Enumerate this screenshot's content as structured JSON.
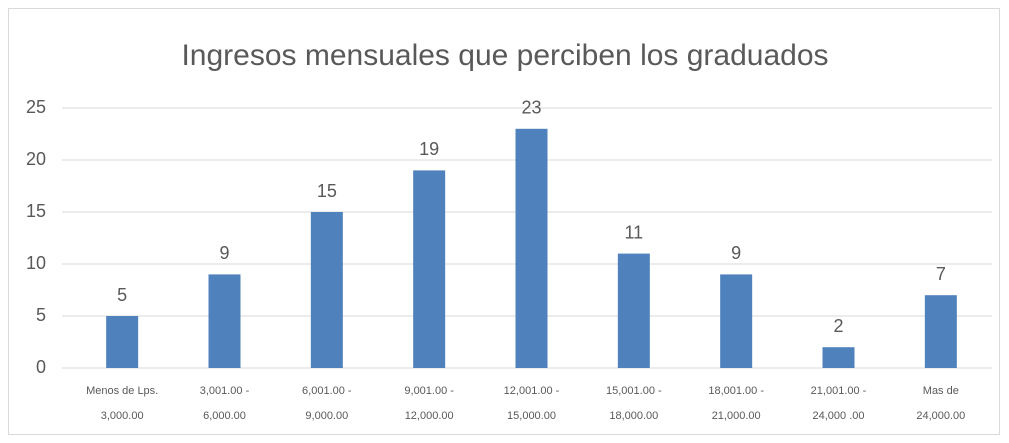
{
  "chart_data": {
    "type": "bar",
    "title": "Ingresos mensuales que perciben los graduados",
    "categories": [
      [
        "Menos de Lps.",
        "3,000.00"
      ],
      [
        "3,001.00 -",
        "6,000.00"
      ],
      [
        "6,001.00 -",
        "9,000.00"
      ],
      [
        "9,001.00 -",
        "12,000.00"
      ],
      [
        "12,001.00 -",
        "15,000.00"
      ],
      [
        "15,001.00 -",
        "18,000.00"
      ],
      [
        "18,001.00 -",
        "21,000.00"
      ],
      [
        "21,001.00 -",
        "24,000 .00"
      ],
      [
        "Mas de",
        "24,000.00"
      ]
    ],
    "values": [
      5,
      9,
      15,
      19,
      23,
      11,
      9,
      2,
      7
    ],
    "color": "#4f81bd",
    "ylim": [
      0,
      25
    ],
    "yticks": [
      0,
      5,
      10,
      15,
      20,
      25
    ],
    "grid": true
  }
}
